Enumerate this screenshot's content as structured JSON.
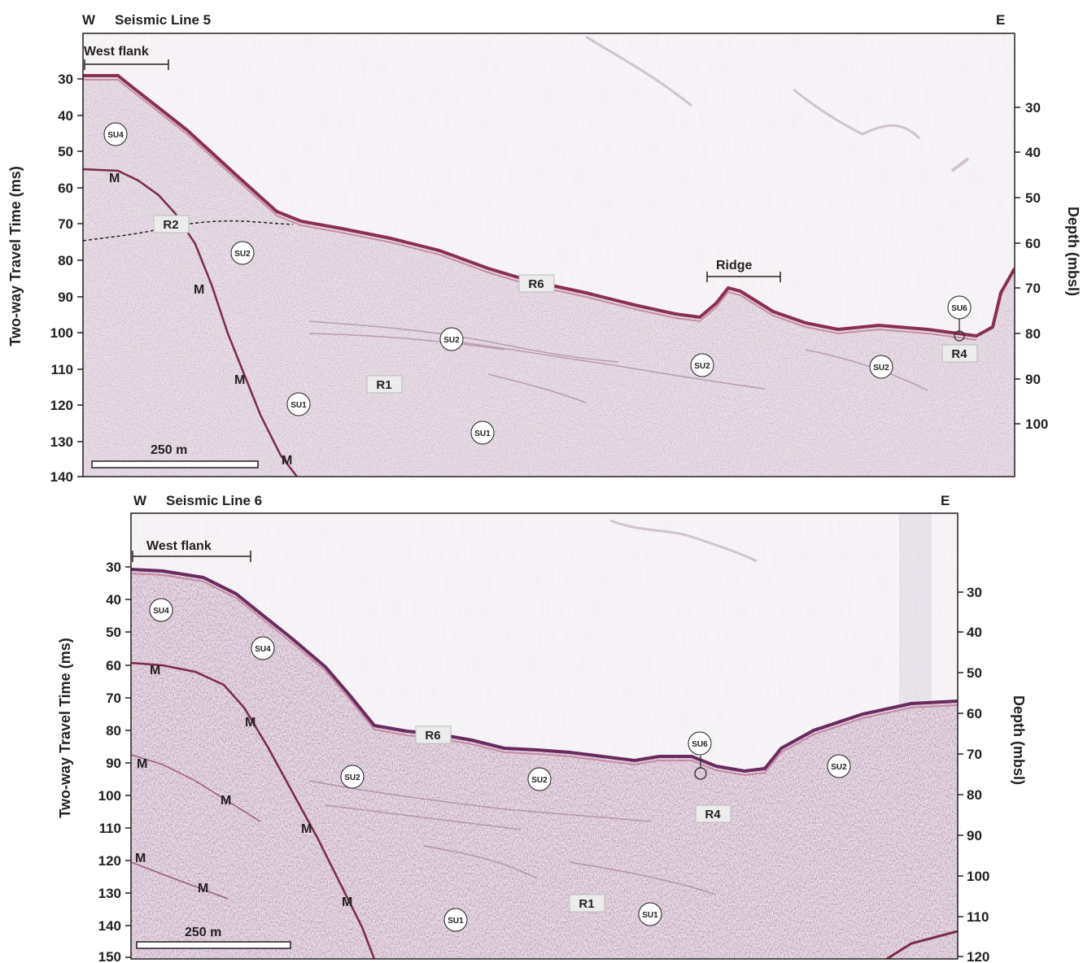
{
  "panels": [
    {
      "title": "Seismic Line 5",
      "west_label": "W",
      "east_label": "E",
      "y_left_title": "Two-way Travel Time (ms)",
      "y_right_title": "Depth (mbsl)",
      "left_ticks": [
        "30",
        "40",
        "50",
        "60",
        "70",
        "80",
        "90",
        "100",
        "110",
        "120",
        "130",
        "140"
      ],
      "right_ticks": [
        "30",
        "40",
        "50",
        "60",
        "70",
        "80",
        "90",
        "100"
      ],
      "scale_bar_label": "250 m",
      "flank_label": "West flank",
      "feature_label": "Ridge",
      "units": [
        "SU4",
        "SU2",
        "SU2",
        "SU2",
        "SU2",
        "SU1",
        "SU1",
        "SU6"
      ],
      "reflectors": [
        "R2",
        "R6",
        "R1",
        "R4"
      ],
      "m_labels": [
        "M",
        "M",
        "M",
        "M"
      ]
    },
    {
      "title": "Seismic Line 6",
      "west_label": "W",
      "east_label": "E",
      "y_left_title": "Two-way Travel Time (ms)",
      "y_right_title": "Depth (mbsl)",
      "left_ticks": [
        "30",
        "40",
        "50",
        "60",
        "70",
        "80",
        "90",
        "100",
        "110",
        "120",
        "130",
        "140",
        "150"
      ],
      "right_ticks": [
        "30",
        "40",
        "50",
        "60",
        "70",
        "80",
        "90",
        "100",
        "110",
        "120"
      ],
      "scale_bar_label": "250 m",
      "flank_label": "West flank",
      "units": [
        "SU4",
        "SU4",
        "SU2",
        "SU2",
        "SU2",
        "SU6",
        "SU1",
        "SU1"
      ],
      "reflectors": [
        "R6",
        "R4",
        "R1"
      ],
      "m_labels": [
        "M",
        "M",
        "M",
        "M",
        "M",
        "M",
        "M",
        "M"
      ]
    }
  ],
  "colors": {
    "seafloor_reflector": "#8a2e52",
    "speckle": "#8e6a86",
    "axis_text": "#231f20"
  }
}
